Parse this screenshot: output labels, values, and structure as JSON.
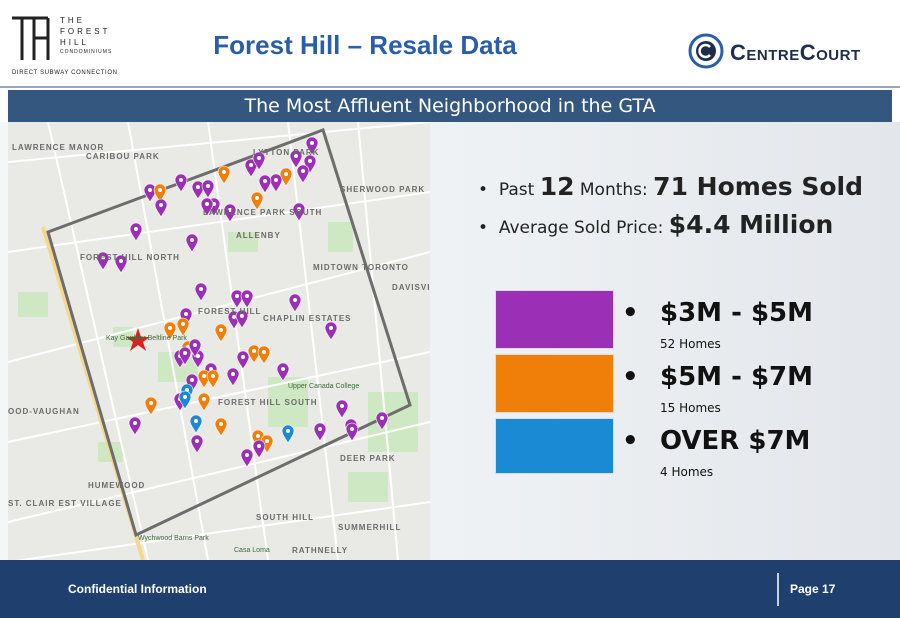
{
  "header": {
    "logo_lines": [
      "THE",
      "FOREST",
      "HILL",
      "CONDOMINIUMS"
    ],
    "logo_tagline": "DIRECT SUBWAY CONNECTION",
    "title": "Forest Hill – Resale Data",
    "brand": "CentreCourt"
  },
  "banner": "The Most Affluent Neighborhood in the GTA",
  "stats": [
    {
      "parts": [
        "Past ",
        "12",
        " Months: ",
        "71 Homes Sold"
      ]
    },
    {
      "parts": [
        "Average Sold Price: ",
        "$4.4 Million"
      ]
    }
  ],
  "legend": [
    {
      "label": "$3M - $5M",
      "count": "52 Homes",
      "color": "#9b2fb5"
    },
    {
      "label": "$5M - $7M",
      "count": "15 Homes",
      "color": "#f07f0a"
    },
    {
      "label": "OVER $7M",
      "count": "4 Homes",
      "color": "#1a8ad4"
    }
  ],
  "map_labels": [
    "LAWRENCE MANOR",
    "CARIBOU PARK",
    "LYTTON PARK",
    "LAWRENCE PARK SOUTH",
    "SHERWOOD PARK",
    "FOREST HILL NORTH",
    "ALLENBY",
    "MIDTOWN TORONTO",
    "DAVISVILLE VILLAGE",
    "FOREST HILL",
    "CHAPLIN ESTATES",
    "Kay Gardner Beltline Park",
    "Upper Canada College",
    "FOREST HILL SOUTH",
    "OOD-VAUGHAN",
    "DEER PARK",
    "HUMEWOOD",
    "ST. CLAIR EST VILLAGE",
    "SOUTH HILL",
    "SUMMERHILL",
    "Wychwood Barns Park",
    "Casa Loma",
    "RATHNELLY"
  ],
  "footer": {
    "left": "Confidential Information",
    "right": "Page 17"
  }
}
